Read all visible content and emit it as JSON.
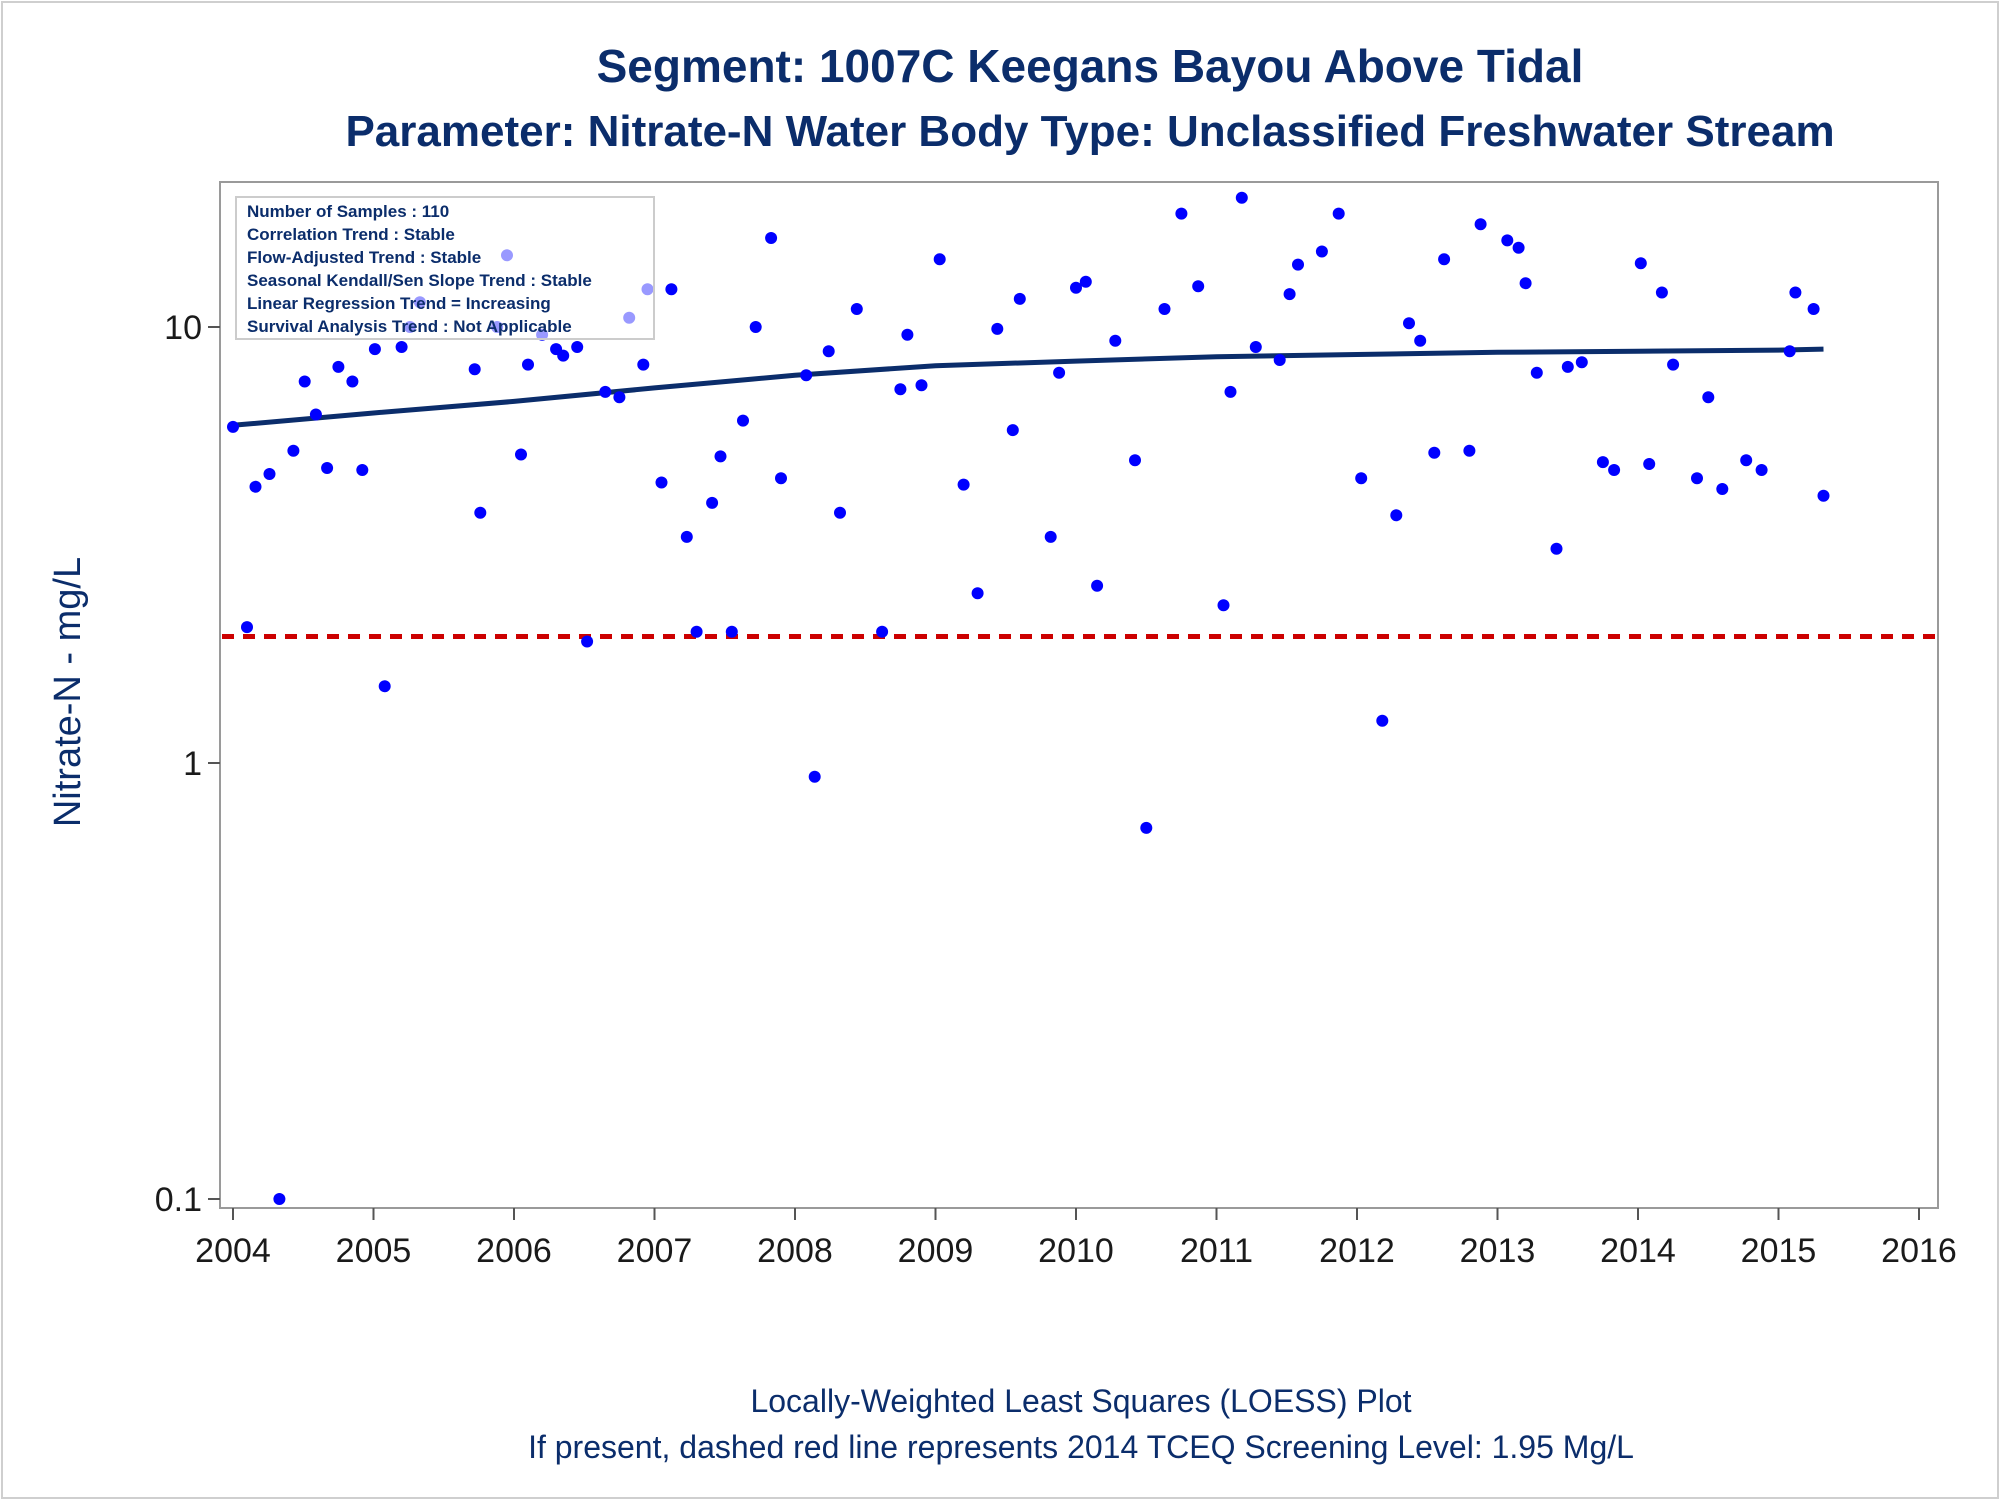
{
  "chart_data": {
    "type": "scatter",
    "title": "Segment: 1007C  Keegans Bayou Above Tidal",
    "subtitle": "Parameter: Nitrate-N   Water Body Type: Unclassified Freshwater Stream",
    "xlabel": "",
    "ylabel": "Nitrate-N - mg/L",
    "y_scale": "log",
    "xlim": [
      2004,
      2016
    ],
    "ylim": [
      0.1,
      20
    ],
    "grid": false,
    "x_ticks": [
      "2004",
      "2005",
      "2006",
      "2007",
      "2008",
      "2009",
      "2010",
      "2011",
      "2012",
      "2013",
      "2014",
      "2015",
      "2016"
    ],
    "y_ticks": [
      {
        "value": 0.1,
        "label": "0.1"
      },
      {
        "value": 1,
        "label": "1"
      },
      {
        "value": 10,
        "label": "10"
      }
    ],
    "annotations": [
      "Number of Samples : 110",
      "Correlation Trend : Stable",
      "Flow-Adjusted Trend : Stable",
      "Seasonal Kendall/Sen Slope Trend : Stable",
      "Linear Regression Trend = Increasing",
      "Survival Analysis Trend : Not Applicable"
    ],
    "footnotes": [
      "Locally-Weighted Least Squares (LOESS) Plot",
      "If present, dashed red line represents 2014 TCEQ Screening Level: 1.95 Mg/L"
    ],
    "screening_level": {
      "value": 1.95,
      "color": "#cc0000",
      "style": "dashed"
    },
    "colors": {
      "points": "#0000ff",
      "loess": "#0b2d6b",
      "title": "#0b2d6b"
    },
    "series": [
      {
        "type": "scatter",
        "points": [
          {
            "x": 2004.0,
            "y": 5.9
          },
          {
            "x": 2004.1,
            "y": 2.05
          },
          {
            "x": 2004.16,
            "y": 4.3
          },
          {
            "x": 2004.26,
            "y": 4.6
          },
          {
            "x": 2004.33,
            "y": 0.1
          },
          {
            "x": 2004.43,
            "y": 5.2
          },
          {
            "x": 2004.51,
            "y": 7.5
          },
          {
            "x": 2004.59,
            "y": 6.3
          },
          {
            "x": 2004.67,
            "y": 4.75
          },
          {
            "x": 2004.75,
            "y": 8.1
          },
          {
            "x": 2004.85,
            "y": 7.5
          },
          {
            "x": 2004.92,
            "y": 4.7
          },
          {
            "x": 2005.01,
            "y": 8.9
          },
          {
            "x": 2005.08,
            "y": 1.5
          },
          {
            "x": 2005.2,
            "y": 9.0
          },
          {
            "x": 2005.26,
            "y": 10.0
          },
          {
            "x": 2005.33,
            "y": 11.4
          },
          {
            "x": 2005.72,
            "y": 8.0
          },
          {
            "x": 2005.76,
            "y": 3.75
          },
          {
            "x": 2005.88,
            "y": 10.0
          },
          {
            "x": 2005.95,
            "y": 14.6
          },
          {
            "x": 2006.05,
            "y": 5.1
          },
          {
            "x": 2006.1,
            "y": 8.2
          },
          {
            "x": 2006.2,
            "y": 9.6
          },
          {
            "x": 2006.3,
            "y": 8.9
          },
          {
            "x": 2006.35,
            "y": 8.6
          },
          {
            "x": 2006.45,
            "y": 9.0
          },
          {
            "x": 2006.52,
            "y": 1.9
          },
          {
            "x": 2006.65,
            "y": 7.1
          },
          {
            "x": 2006.75,
            "y": 6.9
          },
          {
            "x": 2006.82,
            "y": 10.5
          },
          {
            "x": 2006.92,
            "y": 8.2
          },
          {
            "x": 2006.95,
            "y": 12.2
          },
          {
            "x": 2007.05,
            "y": 4.4
          },
          {
            "x": 2007.12,
            "y": 12.2
          },
          {
            "x": 2007.23,
            "y": 3.3
          },
          {
            "x": 2007.3,
            "y": 2.0
          },
          {
            "x": 2007.41,
            "y": 3.95
          },
          {
            "x": 2007.47,
            "y": 5.05
          },
          {
            "x": 2007.55,
            "y": 2.0
          },
          {
            "x": 2007.63,
            "y": 6.1
          },
          {
            "x": 2007.72,
            "y": 10.0
          },
          {
            "x": 2007.83,
            "y": 16.0
          },
          {
            "x": 2007.9,
            "y": 4.5
          },
          {
            "x": 2008.08,
            "y": 7.75
          },
          {
            "x": 2008.14,
            "y": 0.93
          },
          {
            "x": 2008.24,
            "y": 8.8
          },
          {
            "x": 2008.32,
            "y": 3.75
          },
          {
            "x": 2008.44,
            "y": 11.0
          },
          {
            "x": 2008.62,
            "y": 2.0
          },
          {
            "x": 2008.75,
            "y": 7.2
          },
          {
            "x": 2008.8,
            "y": 9.6
          },
          {
            "x": 2008.9,
            "y": 7.35
          },
          {
            "x": 2009.03,
            "y": 14.3
          },
          {
            "x": 2009.2,
            "y": 4.35
          },
          {
            "x": 2009.3,
            "y": 2.45
          },
          {
            "x": 2009.44,
            "y": 9.9
          },
          {
            "x": 2009.55,
            "y": 5.8
          },
          {
            "x": 2009.6,
            "y": 11.6
          },
          {
            "x": 2009.82,
            "y": 3.3
          },
          {
            "x": 2009.88,
            "y": 7.85
          },
          {
            "x": 2010.0,
            "y": 12.3
          },
          {
            "x": 2010.07,
            "y": 12.7
          },
          {
            "x": 2010.15,
            "y": 2.55
          },
          {
            "x": 2010.28,
            "y": 9.3
          },
          {
            "x": 2010.42,
            "y": 4.95
          },
          {
            "x": 2010.5,
            "y": 0.71
          },
          {
            "x": 2010.63,
            "y": 11.0
          },
          {
            "x": 2010.75,
            "y": 18.2
          },
          {
            "x": 2010.87,
            "y": 12.4
          },
          {
            "x": 2011.05,
            "y": 2.3
          },
          {
            "x": 2011.1,
            "y": 7.1
          },
          {
            "x": 2011.18,
            "y": 19.8
          },
          {
            "x": 2011.28,
            "y": 9.0
          },
          {
            "x": 2011.45,
            "y": 8.4
          },
          {
            "x": 2011.52,
            "y": 11.9
          },
          {
            "x": 2011.58,
            "y": 13.9
          },
          {
            "x": 2011.75,
            "y": 14.9
          },
          {
            "x": 2011.87,
            "y": 18.2
          },
          {
            "x": 2012.03,
            "y": 4.5
          },
          {
            "x": 2012.18,
            "y": 1.25
          },
          {
            "x": 2012.28,
            "y": 3.7
          },
          {
            "x": 2012.37,
            "y": 10.2
          },
          {
            "x": 2012.45,
            "y": 9.3
          },
          {
            "x": 2012.55,
            "y": 5.15
          },
          {
            "x": 2012.62,
            "y": 14.3
          },
          {
            "x": 2012.8,
            "y": 5.2
          },
          {
            "x": 2012.88,
            "y": 17.2
          },
          {
            "x": 2013.07,
            "y": 15.8
          },
          {
            "x": 2013.15,
            "y": 15.2
          },
          {
            "x": 2013.2,
            "y": 12.6
          },
          {
            "x": 2013.28,
            "y": 7.85
          },
          {
            "x": 2013.42,
            "y": 3.1
          },
          {
            "x": 2013.5,
            "y": 8.1
          },
          {
            "x": 2013.6,
            "y": 8.3
          },
          {
            "x": 2013.75,
            "y": 4.9
          },
          {
            "x": 2013.83,
            "y": 4.7
          },
          {
            "x": 2014.02,
            "y": 14.0
          },
          {
            "x": 2014.08,
            "y": 4.85
          },
          {
            "x": 2014.17,
            "y": 12.0
          },
          {
            "x": 2014.25,
            "y": 8.2
          },
          {
            "x": 2014.42,
            "y": 4.5
          },
          {
            "x": 2014.5,
            "y": 6.9
          },
          {
            "x": 2014.6,
            "y": 4.25
          },
          {
            "x": 2014.77,
            "y": 4.95
          },
          {
            "x": 2014.88,
            "y": 4.7
          },
          {
            "x": 2015.08,
            "y": 8.8
          },
          {
            "x": 2015.12,
            "y": 12.0
          },
          {
            "x": 2015.25,
            "y": 11.0
          },
          {
            "x": 2015.32,
            "y": 4.1
          }
        ]
      },
      {
        "type": "line",
        "points": [
          {
            "x": 2004.0,
            "y": 5.95
          },
          {
            "x": 2005.0,
            "y": 6.35
          },
          {
            "x": 2006.0,
            "y": 6.75
          },
          {
            "x": 2007.0,
            "y": 7.25
          },
          {
            "x": 2008.0,
            "y": 7.75
          },
          {
            "x": 2009.0,
            "y": 8.15
          },
          {
            "x": 2010.0,
            "y": 8.35
          },
          {
            "x": 2011.0,
            "y": 8.55
          },
          {
            "x": 2012.0,
            "y": 8.65
          },
          {
            "x": 2013.0,
            "y": 8.75
          },
          {
            "x": 2014.0,
            "y": 8.8
          },
          {
            "x": 2015.0,
            "y": 8.85
          },
          {
            "x": 2015.32,
            "y": 8.9
          }
        ]
      }
    ]
  }
}
